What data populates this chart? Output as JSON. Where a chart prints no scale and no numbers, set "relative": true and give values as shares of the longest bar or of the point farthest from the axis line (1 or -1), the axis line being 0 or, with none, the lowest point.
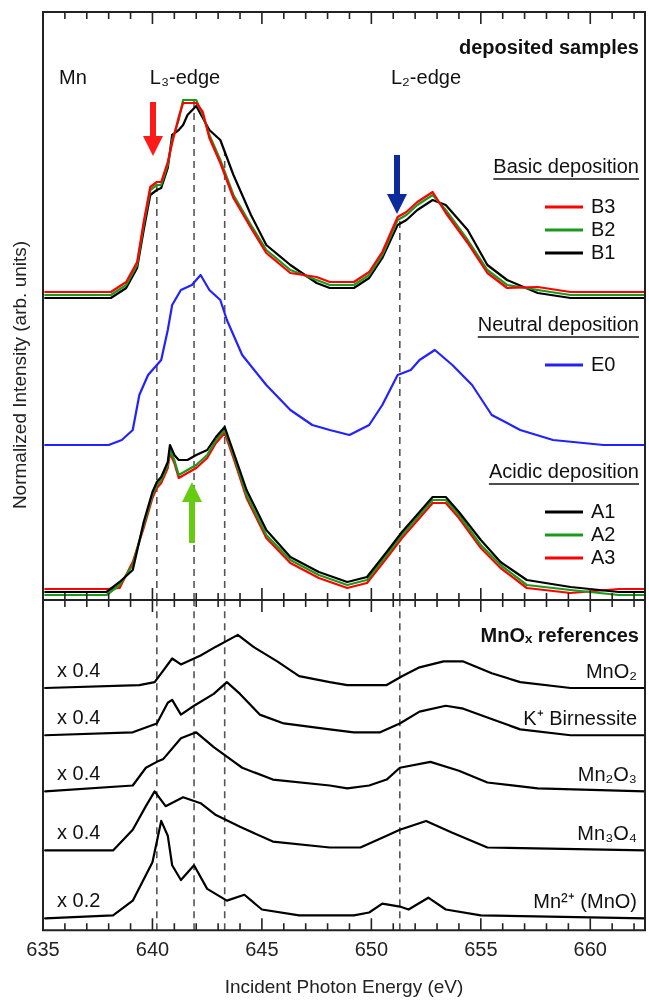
{
  "chart_data": [
    {
      "type": "line",
      "title": "deposited samples",
      "ylabel": "Normalized Intensity (arb. units)",
      "xlim": [
        635,
        662.5
      ],
      "xticks": [
        635,
        {
          "value": 636,
          "label": null
        },
        {
          "value": 637,
          "label": null
        },
        {
          "value": 638,
          "label": null
        },
        {
          "value": 639,
          "label": null
        },
        640,
        {
          "value": 641,
          "label": null
        },
        {
          "value": 642,
          "label": null
        },
        {
          "value": 643,
          "label": null
        },
        {
          "value": 644,
          "label": null
        },
        645,
        {
          "value": 646,
          "label": null
        },
        {
          "value": 647,
          "label": null
        },
        {
          "value": 648,
          "label": null
        },
        {
          "value": 649,
          "label": null
        },
        650,
        {
          "value": 651,
          "label": null
        },
        {
          "value": 652,
          "label": null
        },
        {
          "value": 653,
          "label": null
        },
        {
          "value": 654,
          "label": null
        },
        655,
        {
          "value": 656,
          "label": null
        },
        {
          "value": 657,
          "label": null
        },
        {
          "value": 658,
          "label": null
        },
        {
          "value": 659,
          "label": null
        },
        660,
        {
          "value": 661,
          "label": null
        },
        {
          "value": 662,
          "label": null
        }
      ],
      "relative": true,
      "legend": "right",
      "tick_labels": false,
      "series": [
        {
          "name": "B3",
          "color": "#ff0000",
          "x": [
            635.1,
            638.1,
            638.8,
            639.3,
            639.6,
            639.9,
            640.2,
            640.4,
            640.7,
            640.9,
            641.2,
            641.4,
            641.6,
            642.0,
            642.3,
            642.6,
            643.1,
            643.7,
            644.5,
            645.2,
            646.3,
            647.5,
            648.1,
            649.2,
            649.9,
            650.5,
            651.2,
            651.6,
            652.1,
            652.8,
            653.4,
            654.4,
            655.3,
            656.2,
            657.6,
            659.1,
            660.9,
            662.5
          ],
          "values": [
            0.616,
            0.616,
            0.636,
            0.676,
            0.756,
            0.826,
            0.836,
            0.836,
            0.876,
            0.914,
            0.966,
            0.994,
            0.994,
            0.994,
            0.976,
            0.924,
            0.874,
            0.804,
            0.744,
            0.694,
            0.654,
            0.646,
            0.636,
            0.636,
            0.656,
            0.696,
            0.766,
            0.776,
            0.796,
            0.816,
            0.774,
            0.714,
            0.654,
            0.624,
            0.626,
            0.616,
            0.616,
            0.616
          ]
        },
        {
          "name": "B2",
          "color": "#1a9a1a",
          "x": [
            635.1,
            638.1,
            638.8,
            639.3,
            639.6,
            639.9,
            640.2,
            640.4,
            640.7,
            640.9,
            641.2,
            641.4,
            641.6,
            642.0,
            642.3,
            642.6,
            643.1,
            643.7,
            644.5,
            645.2,
            646.3,
            647.5,
            648.1,
            649.2,
            649.9,
            650.5,
            651.2,
            651.6,
            652.1,
            652.8,
            653.4,
            654.4,
            655.3,
            656.2,
            657.6,
            659.1,
            660.9,
            662.5
          ],
          "values": [
            0.61,
            0.61,
            0.63,
            0.67,
            0.75,
            0.82,
            0.83,
            0.83,
            0.87,
            0.92,
            0.96,
            1.0,
            1.0,
            1.0,
            0.97,
            0.93,
            0.88,
            0.81,
            0.75,
            0.7,
            0.66,
            0.64,
            0.63,
            0.63,
            0.65,
            0.69,
            0.76,
            0.77,
            0.79,
            0.81,
            0.78,
            0.72,
            0.66,
            0.63,
            0.62,
            0.61,
            0.61,
            0.61
          ]
        },
        {
          "name": "B1",
          "color": "#000000",
          "x": [
            635.1,
            638.1,
            638.8,
            639.3,
            639.6,
            639.9,
            640.2,
            640.4,
            640.7,
            640.9,
            641.2,
            641.4,
            641.6,
            642.0,
            642.3,
            642.6,
            643.1,
            643.7,
            644.5,
            645.2,
            646.3,
            647.5,
            648.1,
            649.2,
            649.9,
            650.5,
            651.2,
            651.6,
            652.1,
            652.8,
            653.4,
            654.4,
            655.3,
            656.2,
            657.6,
            659.1,
            660.9,
            662.5
          ],
          "values": [
            0.604,
            0.604,
            0.624,
            0.664,
            0.74,
            0.81,
            0.82,
            0.824,
            0.864,
            0.93,
            0.94,
            0.95,
            0.97,
            0.988,
            0.964,
            0.94,
            0.92,
            0.85,
            0.77,
            0.71,
            0.67,
            0.634,
            0.624,
            0.624,
            0.644,
            0.684,
            0.75,
            0.76,
            0.78,
            0.8,
            0.79,
            0.74,
            0.67,
            0.64,
            0.614,
            0.604,
            0.604,
            0.604
          ]
        },
        {
          "name": "E0",
          "color": "#2222ff",
          "x": [
            635.1,
            638.0,
            638.6,
            639.1,
            639.4,
            639.8,
            640.2,
            640.4,
            640.7,
            640.9,
            641.3,
            641.8,
            642.2,
            642.6,
            643.1,
            643.4,
            644.1,
            645.2,
            646.3,
            647.3,
            648.1,
            649.0,
            649.9,
            650.5,
            651.2,
            651.8,
            652.2,
            652.9,
            653.7,
            654.6,
            655.5,
            656.8,
            658.3,
            660.6,
            662.5
          ],
          "values": [
            0.31,
            0.31,
            0.32,
            0.34,
            0.41,
            0.45,
            0.47,
            0.48,
            0.54,
            0.59,
            0.62,
            0.63,
            0.65,
            0.62,
            0.6,
            0.56,
            0.49,
            0.43,
            0.38,
            0.35,
            0.34,
            0.33,
            0.35,
            0.39,
            0.45,
            0.46,
            0.48,
            0.5,
            0.47,
            0.43,
            0.37,
            0.34,
            0.32,
            0.31,
            0.31
          ]
        },
        {
          "name": "A1",
          "color": "#000000",
          "x": [
            635.1,
            636.4,
            637.9,
            638.5,
            639.1,
            639.6,
            640.0,
            640.2,
            640.4,
            640.7,
            640.8,
            641.0,
            641.2,
            641.6,
            642.0,
            642.5,
            642.9,
            643.3,
            643.7,
            644.3,
            645.2,
            646.3,
            647.6,
            648.9,
            649.8,
            650.7,
            651.4,
            652.2,
            652.8,
            653.4,
            654.0,
            655.0,
            655.9,
            657.1,
            659.1,
            661.3,
            662.5
          ],
          "values": [
            0.016,
            0.016,
            0.016,
            0.036,
            0.06,
            0.156,
            0.216,
            0.236,
            0.246,
            0.276,
            0.31,
            0.29,
            0.28,
            0.28,
            0.29,
            0.3,
            0.326,
            0.346,
            0.296,
            0.22,
            0.14,
            0.086,
            0.056,
            0.036,
            0.046,
            0.096,
            0.136,
            0.176,
            0.206,
            0.206,
            0.176,
            0.12,
            0.076,
            0.04,
            0.026,
            0.016,
            0.016
          ]
        },
        {
          "name": "A2",
          "color": "#1a9a1a",
          "x": [
            635.1,
            636.4,
            637.9,
            638.5,
            639.1,
            639.6,
            640.0,
            640.2,
            640.4,
            640.7,
            640.8,
            641.0,
            641.2,
            641.6,
            642.0,
            642.5,
            642.9,
            643.3,
            643.7,
            644.3,
            645.2,
            646.3,
            647.6,
            648.9,
            649.8,
            650.7,
            651.4,
            652.2,
            652.8,
            653.4,
            654.0,
            655.0,
            655.9,
            657.1,
            659.1,
            661.3,
            662.5
          ],
          "values": [
            0.01,
            0.01,
            0.01,
            0.03,
            0.07,
            0.15,
            0.21,
            0.23,
            0.24,
            0.27,
            0.3,
            0.28,
            0.25,
            0.26,
            0.27,
            0.29,
            0.32,
            0.34,
            0.29,
            0.21,
            0.13,
            0.08,
            0.05,
            0.03,
            0.04,
            0.09,
            0.13,
            0.17,
            0.2,
            0.2,
            0.17,
            0.11,
            0.07,
            0.03,
            0.02,
            0.01,
            0.01
          ]
        },
        {
          "name": "A3",
          "color": "#ff0000",
          "x": [
            635.1,
            636.4,
            637.9,
            638.5,
            639.1,
            639.6,
            640.0,
            640.2,
            640.4,
            640.7,
            640.8,
            641.0,
            641.2,
            641.6,
            642.0,
            642.5,
            642.9,
            643.3,
            643.7,
            644.3,
            645.2,
            646.3,
            647.6,
            648.9,
            649.8,
            650.7,
            651.4,
            652.2,
            652.8,
            653.4,
            654.0,
            655.0,
            655.9,
            657.1,
            659.1,
            661.3,
            662.5
          ],
          "values": [
            0.022,
            0.022,
            0.022,
            0.024,
            0.076,
            0.144,
            0.204,
            0.224,
            0.234,
            0.264,
            0.294,
            0.274,
            0.244,
            0.254,
            0.264,
            0.284,
            0.314,
            0.334,
            0.284,
            0.204,
            0.124,
            0.074,
            0.044,
            0.024,
            0.034,
            0.084,
            0.124,
            0.164,
            0.194,
            0.194,
            0.164,
            0.104,
            0.064,
            0.024,
            0.014,
            0.022,
            0.022
          ]
        }
      ],
      "annotations": [
        "Mn",
        "L₃-edge",
        "L₂-edge",
        "Basic deposition",
        "Neutral deposition",
        "Acidic deposition"
      ],
      "ref_lines": [
        {
          "axis": "x",
          "value": 640.2,
          "color": "#555555",
          "line_style": "dashed"
        },
        {
          "axis": "x",
          "value": 641.9,
          "color": "#555555",
          "line_style": "dashed"
        },
        {
          "axis": "x",
          "value": 643.3,
          "color": "#555555",
          "line_style": "dashed"
        },
        {
          "axis": "x",
          "value": 651.3,
          "color": "#555555",
          "line_style": "dashed"
        }
      ]
    },
    {
      "type": "line",
      "title": "MnOₓ references",
      "xlabel": "Incident Photon Energy (eV)",
      "xlim": [
        635,
        662.5
      ],
      "xticks": [
        635,
        {
          "value": 636,
          "label": null
        },
        {
          "value": 637,
          "label": null
        },
        {
          "value": 638,
          "label": null
        },
        {
          "value": 639,
          "label": null
        },
        640,
        {
          "value": 641,
          "label": null
        },
        {
          "value": 642,
          "label": null
        },
        {
          "value": 643,
          "label": null
        },
        {
          "value": 644,
          "label": null
        },
        645,
        {
          "value": 646,
          "label": null
        },
        {
          "value": 647,
          "label": null
        },
        {
          "value": 648,
          "label": null
        },
        {
          "value": 649,
          "label": null
        },
        650,
        {
          "value": 651,
          "label": null
        },
        {
          "value": 652,
          "label": null
        },
        {
          "value": 653,
          "label": null
        },
        {
          "value": 654,
          "label": null
        },
        655,
        {
          "value": 656,
          "label": null
        },
        {
          "value": 657,
          "label": null
        },
        {
          "value": 658,
          "label": null
        },
        {
          "value": 659,
          "label": null
        },
        660,
        {
          "value": 661,
          "label": null
        },
        {
          "value": 662,
          "label": null
        }
      ],
      "relative": true,
      "tick_labels": "x",
      "series": [
        {
          "name": "MnO₂",
          "color": "#000000",
          "x": [
            635.1,
            639.4,
            640.1,
            640.5,
            640.9,
            641.3,
            642.2,
            642.9,
            643.9,
            644.6,
            645.7,
            646.7,
            648.1,
            648.9,
            650.7,
            651.4,
            652.2,
            653.3,
            654.2,
            655.5,
            656.8,
            659.1,
            662.5
          ],
          "values": [
            0.82,
            0.83,
            0.84,
            0.88,
            0.92,
            0.9,
            0.93,
            0.96,
            1.0,
            0.96,
            0.91,
            0.86,
            0.84,
            0.83,
            0.83,
            0.86,
            0.89,
            0.91,
            0.91,
            0.87,
            0.84,
            0.82,
            0.82
          ]
        },
        {
          "name": "K⁺ Birnessite",
          "color": "#000000",
          "x": [
            635.1,
            639.1,
            640.2,
            640.7,
            640.9,
            641.3,
            641.9,
            642.8,
            643.4,
            644.0,
            644.9,
            646.0,
            648.1,
            649.2,
            650.4,
            651.3,
            652.2,
            653.4,
            654.2,
            655.3,
            656.8,
            659.1,
            662.5
          ],
          "values": [
            0.66,
            0.67,
            0.7,
            0.77,
            0.78,
            0.73,
            0.76,
            0.8,
            0.84,
            0.8,
            0.73,
            0.7,
            0.68,
            0.67,
            0.67,
            0.7,
            0.74,
            0.76,
            0.75,
            0.72,
            0.68,
            0.66,
            0.66
          ]
        },
        {
          "name": "Mn₂O₃",
          "color": "#000000",
          "x": [
            635.1,
            639.1,
            639.7,
            640.2,
            640.5,
            641.3,
            642.0,
            642.8,
            644.1,
            645.5,
            648.1,
            648.9,
            649.9,
            650.7,
            651.3,
            652.7,
            654.0,
            655.3,
            657.6,
            662.5
          ],
          "values": [
            0.47,
            0.49,
            0.55,
            0.57,
            0.58,
            0.65,
            0.67,
            0.62,
            0.55,
            0.51,
            0.49,
            0.48,
            0.49,
            0.51,
            0.55,
            0.57,
            0.54,
            0.5,
            0.48,
            0.47
          ]
        },
        {
          "name": "Mn₃O₄",
          "color": "#000000",
          "x": [
            635.1,
            638.2,
            639.1,
            639.7,
            640.1,
            640.6,
            641.4,
            642.2,
            642.9,
            644.0,
            645.5,
            648.1,
            649.5,
            650.7,
            651.3,
            652.5,
            653.7,
            655.3,
            662.5
          ],
          "values": [
            0.27,
            0.27,
            0.34,
            0.42,
            0.47,
            0.42,
            0.45,
            0.43,
            0.39,
            0.35,
            0.3,
            0.28,
            0.28,
            0.32,
            0.34,
            0.37,
            0.33,
            0.28,
            0.27
          ]
        },
        {
          "name": "Mn²⁺ (MnO)",
          "color": "#000000",
          "x": [
            635.1,
            638.2,
            639.1,
            640.0,
            640.4,
            640.7,
            640.9,
            641.3,
            641.9,
            642.5,
            643.4,
            644.2,
            645.0,
            646.7,
            649.2,
            649.9,
            650.5,
            651.3,
            651.7,
            652.6,
            653.4,
            655.0,
            662.5
          ],
          "values": [
            0.04,
            0.05,
            0.1,
            0.23,
            0.37,
            0.32,
            0.22,
            0.17,
            0.22,
            0.14,
            0.1,
            0.12,
            0.07,
            0.05,
            0.05,
            0.06,
            0.09,
            0.08,
            0.07,
            0.11,
            0.07,
            0.05,
            0.04
          ]
        }
      ],
      "annotations": [
        "x 0.4",
        "x 0.4",
        "x 0.4",
        "x 0.4",
        "x 0.2"
      ],
      "ref_lines": [
        {
          "axis": "x",
          "value": 640.2,
          "color": "#555555",
          "line_style": "dashed"
        },
        {
          "axis": "x",
          "value": 641.9,
          "color": "#555555",
          "line_style": "dashed"
        },
        {
          "axis": "x",
          "value": 643.3,
          "color": "#555555",
          "line_style": "dashed"
        },
        {
          "axis": "x",
          "value": 651.3,
          "color": "#555555",
          "line_style": "dashed"
        }
      ]
    }
  ]
}
